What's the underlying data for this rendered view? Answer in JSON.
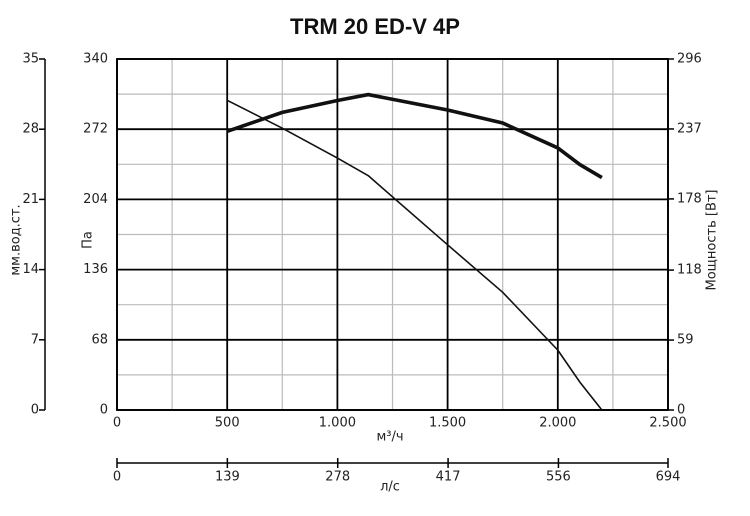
{
  "chart_data": {
    "type": "line",
    "title": "TRM 20 ED-V 4P",
    "x": [
      500,
      750,
      1000,
      1140,
      1500,
      1750,
      2000,
      2100,
      2200
    ],
    "xlim": [
      0,
      2500
    ],
    "xticks": [
      0,
      500,
      {
        "value": 1000,
        "label": "1.000"
      },
      {
        "value": 1500,
        "label": "1.500"
      },
      {
        "value": 2000,
        "label": "2.000"
      },
      {
        "value": 2500,
        "label": "2.500"
      }
    ],
    "xminor": [
      250,
      750,
      1250,
      1750,
      2250
    ],
    "x_label": "м³/ч",
    "x2lim": [
      0,
      694
    ],
    "x2ticks": [
      0,
      139,
      278,
      417,
      556,
      694
    ],
    "x2_label": "л/с",
    "ylim": [
      0,
      340
    ],
    "yticks": [
      0,
      68,
      136,
      204,
      272,
      340
    ],
    "yminor": [
      34,
      102,
      170,
      238,
      306
    ],
    "y_label": "Па",
    "y2lim": [
      0,
      296
    ],
    "y2ticks": [
      0,
      59,
      118,
      178,
      237,
      296
    ],
    "y2_label": "Мощность [Вт]",
    "y3lim": [
      0,
      35
    ],
    "y3ticks": [
      0,
      7,
      14,
      21,
      28,
      35
    ],
    "y3_label": "мм.вод.ст.",
    "grid": true,
    "series": [
      {
        "color": "#111111",
        "width": 1.6,
        "values": [
          300,
          273,
          244,
          227,
          160,
          114,
          58,
          27,
          0
        ]
      },
      {
        "color": "#111111",
        "width": 3.6,
        "axis": "y2",
        "values": [
          235,
          251,
          261,
          266,
          253,
          242,
          221,
          207,
          196
        ]
      }
    ]
  }
}
